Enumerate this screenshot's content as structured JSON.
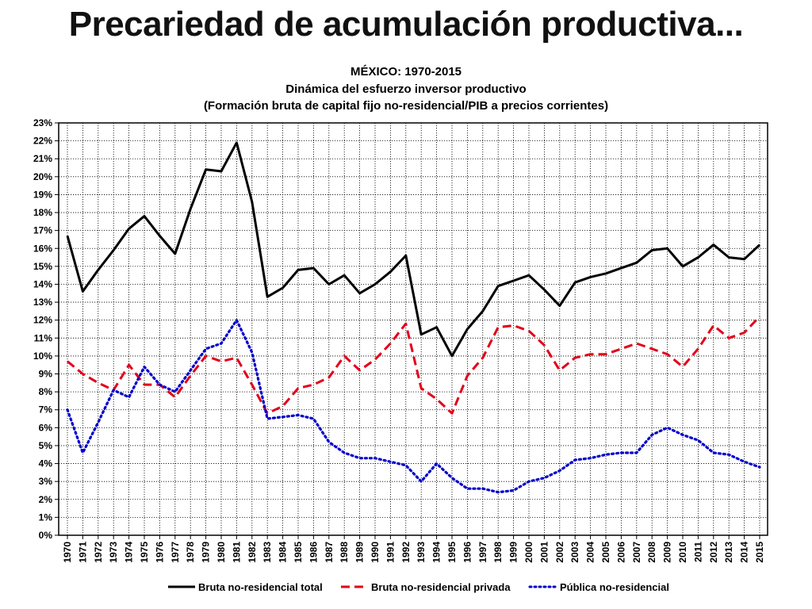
{
  "slide": {
    "title": "Precariedad de acumulación productiva..."
  },
  "chart_data": {
    "type": "line",
    "title": "MÉXICO: 1970-2015",
    "subtitle": "Dinámica del esfuerzo inversor productivo",
    "subtitle2": "(Formación bruta de capital fijo no-residencial/PIB a precios corrientes)",
    "xlabel": "",
    "ylabel": "",
    "x": [
      1970,
      1971,
      1972,
      1973,
      1974,
      1975,
      1976,
      1977,
      1978,
      1979,
      1980,
      1981,
      1982,
      1983,
      1984,
      1985,
      1986,
      1987,
      1988,
      1989,
      1990,
      1991,
      1992,
      1993,
      1994,
      1995,
      1996,
      1997,
      1998,
      1999,
      2000,
      2001,
      2002,
      2003,
      2004,
      2005,
      2006,
      2007,
      2008,
      2009,
      2010,
      2011,
      2012,
      2013,
      2014,
      2015
    ],
    "ylim": [
      0,
      23
    ],
    "ytick_labels": [
      "0%",
      "1%",
      "2%",
      "3%",
      "4%",
      "5%",
      "6%",
      "7%",
      "8%",
      "9%",
      "10%",
      "11%",
      "12%",
      "13%",
      "14%",
      "15%",
      "16%",
      "17%",
      "18%",
      "19%",
      "20%",
      "21%",
      "22%",
      "23%"
    ],
    "grid": true,
    "legend_position": "bottom",
    "series": [
      {
        "name": "Bruta no-residencial total",
        "color": "#000000",
        "style": "solid",
        "values": [
          16.7,
          13.6,
          14.8,
          15.9,
          17.1,
          17.8,
          16.7,
          15.7,
          18.2,
          20.4,
          20.3,
          21.9,
          18.6,
          13.3,
          13.8,
          14.8,
          14.9,
          14.0,
          14.5,
          13.5,
          14.0,
          14.7,
          15.6,
          11.2,
          11.6,
          10.0,
          11.5,
          12.5,
          13.9,
          14.2,
          14.5,
          13.7,
          12.8,
          14.1,
          14.4,
          14.6,
          14.9,
          15.2,
          15.9,
          16.0,
          15.0,
          15.5,
          16.2,
          15.5,
          15.4,
          16.2
        ]
      },
      {
        "name": "Bruta no-residencial privada",
        "color": "#e2001a",
        "style": "dashed",
        "values": [
          9.7,
          9.0,
          8.5,
          8.1,
          9.5,
          8.4,
          8.4,
          7.7,
          8.9,
          10.0,
          9.7,
          9.9,
          8.4,
          6.8,
          7.2,
          8.2,
          8.4,
          8.8,
          10.0,
          9.2,
          9.8,
          10.7,
          11.8,
          8.2,
          7.6,
          6.8,
          8.9,
          9.9,
          11.6,
          11.7,
          11.4,
          10.6,
          9.2,
          9.9,
          10.1,
          10.1,
          10.4,
          10.7,
          10.4,
          10.1,
          9.4,
          10.4,
          11.7,
          11.0,
          11.3,
          12.2
        ]
      },
      {
        "name": "Pública no-residencial",
        "color": "#0000cc",
        "style": "dotted",
        "values": [
          7.0,
          4.6,
          6.3,
          8.1,
          7.7,
          9.4,
          8.4,
          8.0,
          9.2,
          10.4,
          10.7,
          12.0,
          10.2,
          6.5,
          6.6,
          6.7,
          6.5,
          5.2,
          4.6,
          4.3,
          4.3,
          4.1,
          3.9,
          3.0,
          4.0,
          3.2,
          2.6,
          2.6,
          2.4,
          2.5,
          3.0,
          3.2,
          3.6,
          4.2,
          4.3,
          4.5,
          4.6,
          4.6,
          5.6,
          6.0,
          5.6,
          5.3,
          4.6,
          4.5,
          4.1,
          3.8
        ]
      }
    ]
  }
}
